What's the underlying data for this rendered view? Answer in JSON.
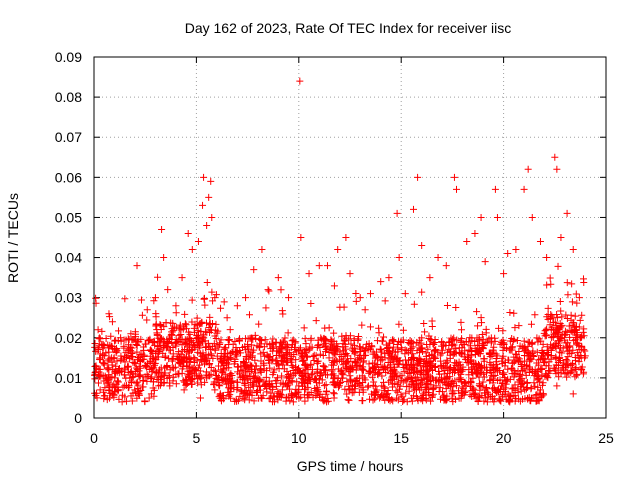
{
  "chart_data": {
    "type": "scatter",
    "title": "Day 162 of 2023, Rate Of TEC Index for receiver iisc",
    "xlabel": "GPS time / hours",
    "ylabel": "ROTI / TECUs",
    "xlim": [
      0,
      25
    ],
    "ylim": [
      0,
      0.09
    ],
    "x_ticks": [
      "0",
      "5",
      "10",
      "15",
      "20",
      "25"
    ],
    "y_ticks": [
      "0",
      "0.01",
      "0.02",
      "0.03",
      "0.04",
      "0.05",
      "0.06",
      "0.07",
      "0.08",
      "0.09"
    ],
    "grid": true,
    "marker": "+",
    "color": "#ff0000",
    "points": [
      [
        0.2,
        0.022
      ],
      [
        0.5,
        0.018
      ],
      [
        0.9,
        0.024
      ],
      [
        1.3,
        0.02
      ],
      [
        1.8,
        0.021
      ],
      [
        2.1,
        0.038
      ],
      [
        2.6,
        0.027
      ],
      [
        3.0,
        0.03
      ],
      [
        3.3,
        0.047
      ],
      [
        3.4,
        0.04
      ],
      [
        3.6,
        0.032
      ],
      [
        4.0,
        0.028
      ],
      [
        4.3,
        0.035
      ],
      [
        4.6,
        0.046
      ],
      [
        4.8,
        0.042
      ],
      [
        5.1,
        0.044
      ],
      [
        5.3,
        0.053
      ],
      [
        5.35,
        0.06
      ],
      [
        5.5,
        0.048
      ],
      [
        5.6,
        0.055
      ],
      [
        5.7,
        0.059
      ],
      [
        5.75,
        0.05
      ],
      [
        5.9,
        0.03
      ],
      [
        6.5,
        0.025
      ],
      [
        7.0,
        0.028
      ],
      [
        7.4,
        0.03
      ],
      [
        7.8,
        0.037
      ],
      [
        8.2,
        0.042
      ],
      [
        8.5,
        0.032
      ],
      [
        9.0,
        0.035
      ],
      [
        9.5,
        0.03
      ],
      [
        10.05,
        0.084
      ],
      [
        10.1,
        0.045
      ],
      [
        10.5,
        0.036
      ],
      [
        11.0,
        0.038
      ],
      [
        11.4,
        0.038
      ],
      [
        11.9,
        0.042
      ],
      [
        12.3,
        0.045
      ],
      [
        12.5,
        0.036
      ],
      [
        13.0,
        0.03
      ],
      [
        13.5,
        0.031
      ],
      [
        14.0,
        0.034
      ],
      [
        14.4,
        0.035
      ],
      [
        14.8,
        0.051
      ],
      [
        14.9,
        0.04
      ],
      [
        15.2,
        0.031
      ],
      [
        15.6,
        0.052
      ],
      [
        15.8,
        0.06
      ],
      [
        16.0,
        0.043
      ],
      [
        16.4,
        0.035
      ],
      [
        16.8,
        0.04
      ],
      [
        17.2,
        0.038
      ],
      [
        17.6,
        0.06
      ],
      [
        17.7,
        0.057
      ],
      [
        18.2,
        0.044
      ],
      [
        18.6,
        0.046
      ],
      [
        18.9,
        0.05
      ],
      [
        19.1,
        0.039
      ],
      [
        19.6,
        0.057
      ],
      [
        19.7,
        0.05
      ],
      [
        20.0,
        0.036
      ],
      [
        20.2,
        0.041
      ],
      [
        20.6,
        0.042
      ],
      [
        21.0,
        0.057
      ],
      [
        21.2,
        0.062
      ],
      [
        21.4,
        0.05
      ],
      [
        21.8,
        0.044
      ],
      [
        22.1,
        0.04
      ],
      [
        22.5,
        0.065
      ],
      [
        22.6,
        0.062
      ],
      [
        22.8,
        0.045
      ],
      [
        23.1,
        0.051
      ],
      [
        23.4,
        0.042
      ],
      [
        23.7,
        0.03
      ],
      [
        0.1,
        0.013
      ],
      [
        0.3,
        0.007
      ],
      [
        0.6,
        0.01
      ],
      [
        0.9,
        0.006
      ],
      [
        1.2,
        0.012
      ],
      [
        1.5,
        0.008
      ],
      [
        1.9,
        0.011
      ],
      [
        2.2,
        0.006
      ],
      [
        2.5,
        0.013
      ],
      [
        2.9,
        0.009
      ],
      [
        3.2,
        0.012
      ],
      [
        3.7,
        0.008
      ],
      [
        4.1,
        0.011
      ],
      [
        4.4,
        0.007
      ],
      [
        4.9,
        0.012
      ],
      [
        5.2,
        0.005
      ],
      [
        5.5,
        0.01
      ],
      [
        5.9,
        0.007
      ],
      [
        6.3,
        0.012
      ],
      [
        6.7,
        0.008
      ],
      [
        7.1,
        0.011
      ],
      [
        7.5,
        0.006
      ],
      [
        7.9,
        0.013
      ],
      [
        8.3,
        0.009
      ],
      [
        8.8,
        0.012
      ],
      [
        9.2,
        0.007
      ],
      [
        9.6,
        0.011
      ],
      [
        10.0,
        0.008
      ],
      [
        10.4,
        0.013
      ],
      [
        10.9,
        0.006
      ],
      [
        11.3,
        0.012
      ],
      [
        11.7,
        0.009
      ],
      [
        12.1,
        0.011
      ],
      [
        12.6,
        0.007
      ],
      [
        13.0,
        0.013
      ],
      [
        13.4,
        0.008
      ],
      [
        13.9,
        0.012
      ],
      [
        14.3,
        0.006
      ],
      [
        14.7,
        0.011
      ],
      [
        15.1,
        0.009
      ],
      [
        15.5,
        0.012
      ],
      [
        15.9,
        0.007
      ],
      [
        16.3,
        0.013
      ],
      [
        16.7,
        0.008
      ],
      [
        17.1,
        0.011
      ],
      [
        17.5,
        0.006
      ],
      [
        17.9,
        0.012
      ],
      [
        18.3,
        0.009
      ],
      [
        18.7,
        0.011
      ],
      [
        19.1,
        0.007
      ],
      [
        19.5,
        0.013
      ],
      [
        19.9,
        0.008
      ],
      [
        20.3,
        0.004
      ],
      [
        20.6,
        0.011
      ],
      [
        21.0,
        0.009
      ],
      [
        21.4,
        0.012
      ],
      [
        21.8,
        0.007
      ],
      [
        22.2,
        0.013
      ],
      [
        22.6,
        0.008
      ],
      [
        23.0,
        0.011
      ],
      [
        23.4,
        0.006
      ],
      [
        23.8,
        0.012
      ]
    ]
  }
}
